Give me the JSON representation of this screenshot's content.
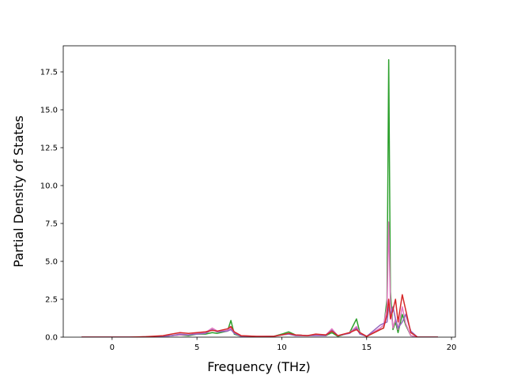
{
  "chart_data": {
    "type": "line",
    "xlabel": "Frequency (THz)",
    "ylabel": "Partial Density of States",
    "xlim": [
      -2.88,
      20.23
    ],
    "ylim": [
      0,
      19.22
    ],
    "xticks": [
      0,
      5,
      10,
      15,
      20
    ],
    "yticks": [
      {
        "value": 0,
        "label": "0.0"
      },
      2.5,
      {
        "value": 5,
        "label": "5.0"
      },
      7.5,
      {
        "value": 10,
        "label": "10.0"
      },
      12.5,
      {
        "value": 15,
        "label": "15.0"
      },
      17.5
    ],
    "x": [
      -1.8,
      1,
      2,
      3,
      3.5,
      4,
      4.5,
      5,
      5.5,
      5.9,
      6.2,
      6.8,
      7.0,
      7.2,
      7.6,
      8.5,
      9.5,
      10,
      10.4,
      10.8,
      11.5,
      12,
      12.6,
      12.95,
      13.3,
      14,
      14.4,
      14.6,
      15,
      15.8,
      16.0,
      16.2,
      16.3,
      16.4,
      16.55,
      16.7,
      16.85,
      17.1,
      17.3,
      17.6,
      18,
      19.2
    ],
    "series": [
      {
        "color": "#2ca02c",
        "values": [
          0,
          0,
          0.02,
          0.05,
          0.1,
          0.15,
          0.1,
          0.2,
          0.2,
          0.3,
          0.25,
          0.4,
          1.1,
          0.2,
          0.05,
          0.02,
          0.05,
          0.2,
          0.35,
          0.15,
          0.1,
          0.15,
          0.1,
          0.3,
          0.05,
          0.3,
          1.2,
          0.3,
          0.05,
          0.5,
          0.6,
          2.5,
          18.3,
          3.0,
          0.5,
          1.0,
          0.3,
          1.5,
          0.8,
          0.1,
          0,
          0
        ]
      },
      {
        "color": "#e377c2",
        "values": [
          0,
          0,
          0.02,
          0.05,
          0.1,
          0.15,
          0.15,
          0.25,
          0.3,
          0.6,
          0.4,
          0.45,
          0.6,
          0.3,
          0.1,
          0.05,
          0.05,
          0.15,
          0.2,
          0.15,
          0.1,
          0.15,
          0.15,
          0.55,
          0.1,
          0.3,
          0.7,
          0.3,
          0.05,
          0.6,
          0.8,
          2.0,
          7.6,
          2.2,
          0.6,
          1.2,
          0.5,
          2.0,
          0.9,
          0.1,
          0,
          0
        ]
      },
      {
        "color": "#9467bd",
        "values": [
          0,
          0,
          0.02,
          0.05,
          0.1,
          0.2,
          0.15,
          0.2,
          0.25,
          0.5,
          0.35,
          0.4,
          0.5,
          0.25,
          0.05,
          0.03,
          0.05,
          0.15,
          0.2,
          0.1,
          0.1,
          0.1,
          0.1,
          0.45,
          0.1,
          0.25,
          0.6,
          0.2,
          0.05,
          0.8,
          0.9,
          1.0,
          2.0,
          1.5,
          2.0,
          1.2,
          0.6,
          1.0,
          1.5,
          0.4,
          0,
          0
        ]
      },
      {
        "color": "#d62728",
        "values": [
          0,
          0,
          0.03,
          0.1,
          0.2,
          0.3,
          0.25,
          0.3,
          0.35,
          0.45,
          0.4,
          0.55,
          0.7,
          0.35,
          0.1,
          0.05,
          0.05,
          0.15,
          0.25,
          0.15,
          0.1,
          0.2,
          0.15,
          0.4,
          0.1,
          0.3,
          0.5,
          0.3,
          0.05,
          0.5,
          0.6,
          1.5,
          2.5,
          1.2,
          1.8,
          2.5,
          1.0,
          2.8,
          1.8,
          0.3,
          0,
          0
        ]
      }
    ]
  }
}
